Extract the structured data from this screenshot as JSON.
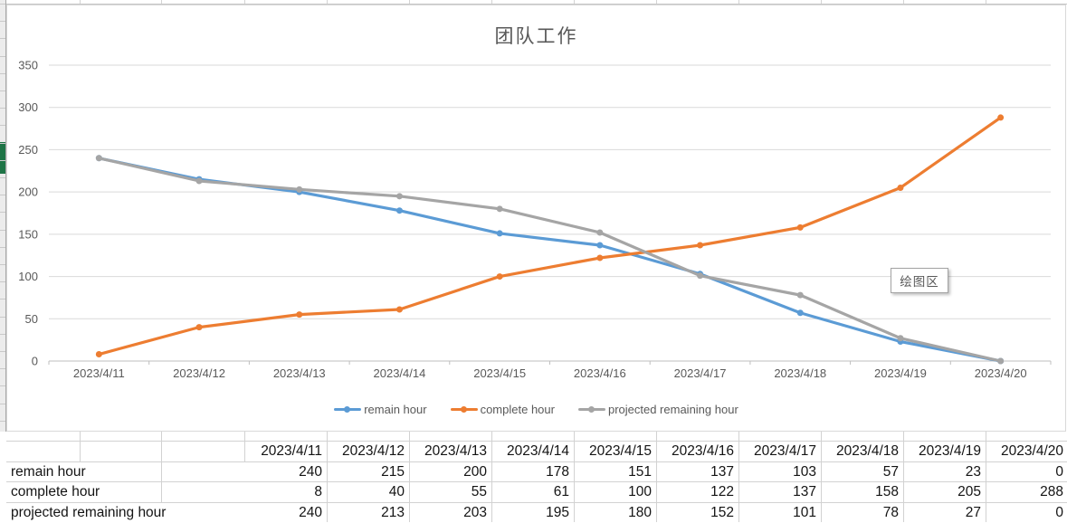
{
  "chart": {
    "title": "团队工作",
    "plot_area_label": "绘图区"
  },
  "chart_data": {
    "type": "line",
    "title": "团队工作",
    "categories": [
      "2023/4/11",
      "2023/4/12",
      "2023/4/13",
      "2023/4/14",
      "2023/4/15",
      "2023/4/16",
      "2023/4/17",
      "2023/4/18",
      "2023/4/19",
      "2023/4/20"
    ],
    "series": [
      {
        "name": "remain hour",
        "color": "#5B9BD5",
        "values": [
          240,
          215,
          200,
          178,
          151,
          137,
          103,
          57,
          23,
          0
        ]
      },
      {
        "name": "complete hour",
        "color": "#ED7D31",
        "values": [
          8,
          40,
          55,
          61,
          100,
          122,
          137,
          158,
          205,
          288
        ]
      },
      {
        "name": "projected remaining hour",
        "color": "#A5A5A5",
        "values": [
          240,
          213,
          203,
          195,
          180,
          152,
          101,
          78,
          27,
          0
        ]
      }
    ],
    "ylim": [
      0,
      350
    ],
    "ytick_step": 50,
    "ytick_labels": [
      "0",
      "50",
      "100",
      "150",
      "200",
      "250",
      "300",
      "350"
    ],
    "grid": true,
    "legend_position": "bottom",
    "annotations": [
      "绘图区"
    ]
  },
  "table": {
    "date_headers": [
      "2023/4/11",
      "2023/4/12",
      "2023/4/13",
      "2023/4/14",
      "2023/4/15",
      "2023/4/16",
      "2023/4/17",
      "2023/4/18",
      "2023/4/19",
      "2023/4/20"
    ],
    "rows": [
      {
        "label": "remain hour",
        "values": [
          "240",
          "215",
          "200",
          "178",
          "151",
          "137",
          "103",
          "57",
          "23",
          "0"
        ]
      },
      {
        "label": "complete hour",
        "values": [
          "8",
          "40",
          "55",
          "61",
          "100",
          "122",
          "137",
          "158",
          "205",
          "288"
        ]
      },
      {
        "label": "projected remaining hour",
        "values": [
          "240",
          "213",
          "203",
          "195",
          "180",
          "152",
          "101",
          "78",
          "27",
          "0"
        ]
      }
    ]
  },
  "colors": {
    "remain": "#5B9BD5",
    "complete": "#ED7D31",
    "projected": "#A5A5A5",
    "axis_text": "#595959",
    "gridline": "#D9D9D9",
    "axis_line": "#BFBFBF",
    "selection_green": "#1E7446"
  }
}
